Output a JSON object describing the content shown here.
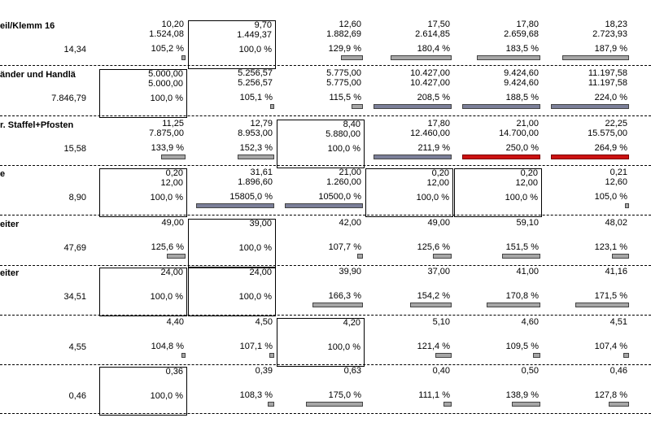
{
  "colors": {
    "gray_bar": "#a6a6a6",
    "blue_bar": "#7b7f99",
    "red_bar": "#cc1111"
  },
  "rows": [
    {
      "title": "eil/Klemm 16",
      "left_value": "14,34",
      "cells": [
        {
          "l1": "10,20",
          "l2": "1.524,08",
          "l3": "105,2 %",
          "boxed": false,
          "bar": "gray",
          "fill": 0.05
        },
        {
          "l1": "9,70",
          "l2": "1.449,37",
          "l3": "100,0 %",
          "boxed": true,
          "bar": null,
          "fill": 0
        },
        {
          "l1": "12,60",
          "l2": "1.882,69",
          "l3": "129,9 %",
          "boxed": false,
          "bar": "gray",
          "fill": 0.27
        },
        {
          "l1": "17,50",
          "l2": "2.614,85",
          "l3": "180,4 %",
          "boxed": false,
          "bar": "gray",
          "fill": 0.75
        },
        {
          "l1": "17,80",
          "l2": "2.659,68",
          "l3": "183,5 %",
          "boxed": false,
          "bar": "gray",
          "fill": 0.78
        },
        {
          "l1": "18,23",
          "l2": "2.723,93",
          "l3": "187,9 %",
          "boxed": false,
          "bar": "gray",
          "fill": 0.82
        }
      ]
    },
    {
      "title": "änder und Handlä",
      "left_value": "7.846,79",
      "cells": [
        {
          "l1": "5.000,00",
          "l2": "5.000,00",
          "l3": "100,0 %",
          "boxed": true,
          "bar": null,
          "fill": 0
        },
        {
          "l1": "5.256,57",
          "l2": "5.256,57",
          "l3": "105,1 %",
          "boxed": false,
          "bar": "gray",
          "fill": 0.05
        },
        {
          "l1": "5.775,00",
          "l2": "5.775,00",
          "l3": "115,5 %",
          "boxed": false,
          "bar": "gray",
          "fill": 0.14
        },
        {
          "l1": "10.427,00",
          "l2": "10.427,00",
          "l3": "208,5 %",
          "boxed": false,
          "bar": "blue",
          "fill": 0.96
        },
        {
          "l1": "9.424,60",
          "l2": "9.424,60",
          "l3": "188,5 %",
          "boxed": false,
          "bar": "blue",
          "fill": 0.96
        },
        {
          "l1": "11.197,58",
          "l2": "11.197,58",
          "l3": "224,0 %",
          "boxed": false,
          "bar": "blue",
          "fill": 0.96
        }
      ]
    },
    {
      "title": "r. Staffel+Pfosten",
      "left_value": "15,58",
      "cells": [
        {
          "l1": "11,25",
          "l2": "7.875,00",
          "l3": "133,9 %",
          "boxed": false,
          "bar": "gray",
          "fill": 0.3
        },
        {
          "l1": "12,79",
          "l2": "8.953,00",
          "l3": "152,3 %",
          "boxed": false,
          "bar": "gray",
          "fill": 0.45
        },
        {
          "l1": "8,40",
          "l2": "5.880,00",
          "l3": "100,0 %",
          "boxed": true,
          "bar": null,
          "fill": 0
        },
        {
          "l1": "17,80",
          "l2": "12.460,00",
          "l3": "211,9 %",
          "boxed": false,
          "bar": "blue",
          "fill": 0.96
        },
        {
          "l1": "21,00",
          "l2": "14.700,00",
          "l3": "250,0 %",
          "boxed": false,
          "bar": "red",
          "fill": 0.96
        },
        {
          "l1": "22,25",
          "l2": "15.575,00",
          "l3": "264,9 %",
          "boxed": false,
          "bar": "red",
          "fill": 0.96
        }
      ]
    },
    {
      "title": "e",
      "left_value": "8,90",
      "cells": [
        {
          "l1": "0,20",
          "l2": "12,00",
          "l3": "100,0 %",
          "boxed": true,
          "bar": null,
          "fill": 0
        },
        {
          "l1": "31,61",
          "l2": "1.896,60",
          "l3": "15805,0 %",
          "boxed": false,
          "bar": "blue",
          "fill": 0.96
        },
        {
          "l1": "21,00",
          "l2": "1.260,00",
          "l3": "10500,0 %",
          "boxed": false,
          "bar": "blue",
          "fill": 0.96
        },
        {
          "l1": "0,20",
          "l2": "12,00",
          "l3": "100,0 %",
          "boxed": true,
          "bar": null,
          "fill": 0
        },
        {
          "l1": "0,20",
          "l2": "12,00",
          "l3": "100,0 %",
          "boxed": true,
          "bar": null,
          "fill": 0
        },
        {
          "l1": "0,21",
          "l2": "12,60",
          "l3": "105,0 %",
          "boxed": false,
          "bar": "gray",
          "fill": 0.05
        }
      ]
    },
    {
      "title": "eiter",
      "left_value": "47,69",
      "cells": [
        {
          "l1": "49,00",
          "l2": "",
          "l3": "125,6 %",
          "boxed": false,
          "bar": "gray",
          "fill": 0.23
        },
        {
          "l1": "39,00",
          "l2": "",
          "l3": "100,0 %",
          "boxed": true,
          "bar": null,
          "fill": 0
        },
        {
          "l1": "42,00",
          "l2": "",
          "l3": "107,7 %",
          "boxed": false,
          "bar": "gray",
          "fill": 0.07
        },
        {
          "l1": "49,00",
          "l2": "",
          "l3": "125,6 %",
          "boxed": false,
          "bar": "gray",
          "fill": 0.23
        },
        {
          "l1": "59,10",
          "l2": "",
          "l3": "151,5 %",
          "boxed": false,
          "bar": "gray",
          "fill": 0.47
        },
        {
          "l1": "48,02",
          "l2": "",
          "l3": "123,1 %",
          "boxed": false,
          "bar": "gray",
          "fill": 0.21
        }
      ]
    },
    {
      "title": "eiter",
      "left_value": "34,51",
      "cells": [
        {
          "l1": "24,00",
          "l2": "",
          "l3": "100,0 %",
          "boxed": true,
          "bar": null,
          "fill": 0
        },
        {
          "l1": "24,00",
          "l2": "",
          "l3": "100,0 %",
          "boxed": true,
          "bar": null,
          "fill": 0
        },
        {
          "l1": "39,90",
          "l2": "",
          "l3": "166,3 %",
          "boxed": false,
          "bar": "gray",
          "fill": 0.62
        },
        {
          "l1": "37,00",
          "l2": "",
          "l3": "154,2 %",
          "boxed": false,
          "bar": "gray",
          "fill": 0.51
        },
        {
          "l1": "41,00",
          "l2": "",
          "l3": "170,8 %",
          "boxed": false,
          "bar": "gray",
          "fill": 0.66
        },
        {
          "l1": "41,16",
          "l2": "",
          "l3": "171,5 %",
          "boxed": false,
          "bar": "gray",
          "fill": 0.66
        }
      ]
    },
    {
      "title": "",
      "left_value": "4,55",
      "cells": [
        {
          "l1": "4,40",
          "l2": "",
          "l3": "104,8 %",
          "boxed": false,
          "bar": "gray",
          "fill": 0.05
        },
        {
          "l1": "4,50",
          "l2": "",
          "l3": "107,1 %",
          "boxed": false,
          "bar": "gray",
          "fill": 0.06
        },
        {
          "l1": "4,20",
          "l2": "",
          "l3": "100,0 %",
          "boxed": true,
          "bar": null,
          "fill": 0
        },
        {
          "l1": "5,10",
          "l2": "",
          "l3": "121,4 %",
          "boxed": false,
          "bar": "gray",
          "fill": 0.2
        },
        {
          "l1": "4,60",
          "l2": "",
          "l3": "109,5 %",
          "boxed": false,
          "bar": "gray",
          "fill": 0.09
        },
        {
          "l1": "4,51",
          "l2": "",
          "l3": "107,4 %",
          "boxed": false,
          "bar": "gray",
          "fill": 0.07
        }
      ]
    },
    {
      "title": "",
      "left_value": "0,46",
      "cells": [
        {
          "l1": "0,36",
          "l2": "",
          "l3": "100,0 %",
          "boxed": true,
          "bar": null,
          "fill": 0
        },
        {
          "l1": "0,39",
          "l2": "",
          "l3": "108,3 %",
          "boxed": false,
          "bar": "gray",
          "fill": 0.08
        },
        {
          "l1": "0,63",
          "l2": "",
          "l3": "175,0 %",
          "boxed": false,
          "bar": "gray",
          "fill": 0.7
        },
        {
          "l1": "0,40",
          "l2": "",
          "l3": "111,1 %",
          "boxed": false,
          "bar": "gray",
          "fill": 0.1
        },
        {
          "l1": "0,50",
          "l2": "",
          "l3": "138,9 %",
          "boxed": false,
          "bar": "gray",
          "fill": 0.35
        },
        {
          "l1": "0,46",
          "l2": "",
          "l3": "127,8 %",
          "boxed": false,
          "bar": "gray",
          "fill": 0.25
        }
      ]
    }
  ]
}
